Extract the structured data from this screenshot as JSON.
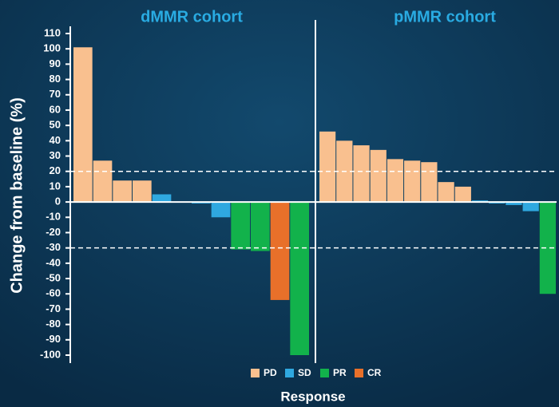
{
  "chart_data": {
    "type": "waterfall",
    "y_label": "Change from baseline (%)",
    "x_label": "Response",
    "ylim": [
      -100,
      110
    ],
    "yticks": [
      110,
      100,
      90,
      80,
      70,
      60,
      50,
      40,
      30,
      20,
      10,
      0,
      -10,
      -20,
      -30,
      -40,
      -50,
      -60,
      -70,
      -80,
      -90,
      -100
    ],
    "reference_lines": [
      20,
      -30
    ],
    "legend": [
      {
        "name": "PD",
        "color": "#f9c08f"
      },
      {
        "name": "SD",
        "color": "#2fa8e0"
      },
      {
        "name": "PR",
        "color": "#12b24b"
      },
      {
        "name": "CR",
        "color": "#e8702a"
      }
    ],
    "panels": [
      {
        "title": "dMMR cohort",
        "values": [
          101,
          27,
          14,
          14,
          5,
          0,
          -1,
          -10,
          -31,
          -32,
          -64,
          -100
        ],
        "response": [
          "PD",
          "PD",
          "PD",
          "PD",
          "SD",
          "SD",
          "SD",
          "SD",
          "PR",
          "PR",
          "CR",
          "PR"
        ]
      },
      {
        "title": "pMMR cohort",
        "values": [
          46,
          40,
          37,
          34,
          28,
          27,
          26,
          13,
          10,
          1,
          -1,
          -2,
          -6,
          -60
        ],
        "response": [
          "PD",
          "PD",
          "PD",
          "PD",
          "PD",
          "PD",
          "PD",
          "PD",
          "PD",
          "SD",
          "SD",
          "SD",
          "SD",
          "PR"
        ]
      }
    ]
  }
}
